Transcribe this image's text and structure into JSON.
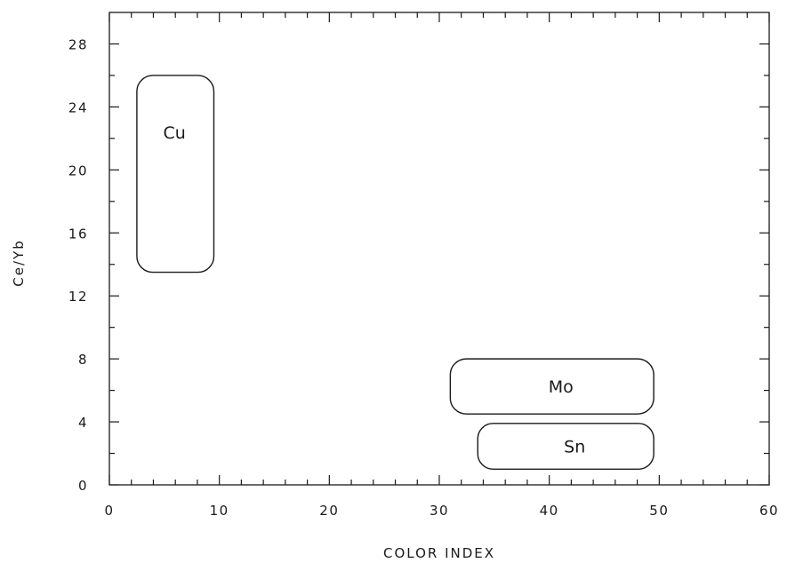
{
  "chart_data": {
    "type": "scatter",
    "title": "",
    "xlabel": "COLOR INDEX",
    "ylabel": "Ce/Yb",
    "xlim": [
      0,
      60
    ],
    "ylim": [
      0,
      30
    ],
    "x_ticks": [
      0,
      10,
      20,
      30,
      40,
      50,
      60
    ],
    "x_tick_labels": [
      "0",
      "10",
      "20",
      "30",
      "40",
      "50",
      "60"
    ],
    "y_ticks": [
      0,
      4,
      8,
      12,
      16,
      20,
      24,
      28
    ],
    "y_tick_labels": [
      "0",
      "4",
      "8",
      "12",
      "16",
      "20",
      "24",
      "28"
    ],
    "x_minor_step": 2,
    "y_minor_step": 2,
    "grid": false,
    "fields": [
      {
        "label": "Cu",
        "x": [
          2.5,
          9.5
        ],
        "y": [
          13.5,
          26
        ]
      },
      {
        "label": "Mo",
        "x": [
          31,
          49.5
        ],
        "y": [
          4.5,
          8
        ]
      },
      {
        "label": "Sn",
        "x": [
          33.5,
          49.5
        ],
        "y": [
          1,
          3.9
        ]
      }
    ]
  }
}
